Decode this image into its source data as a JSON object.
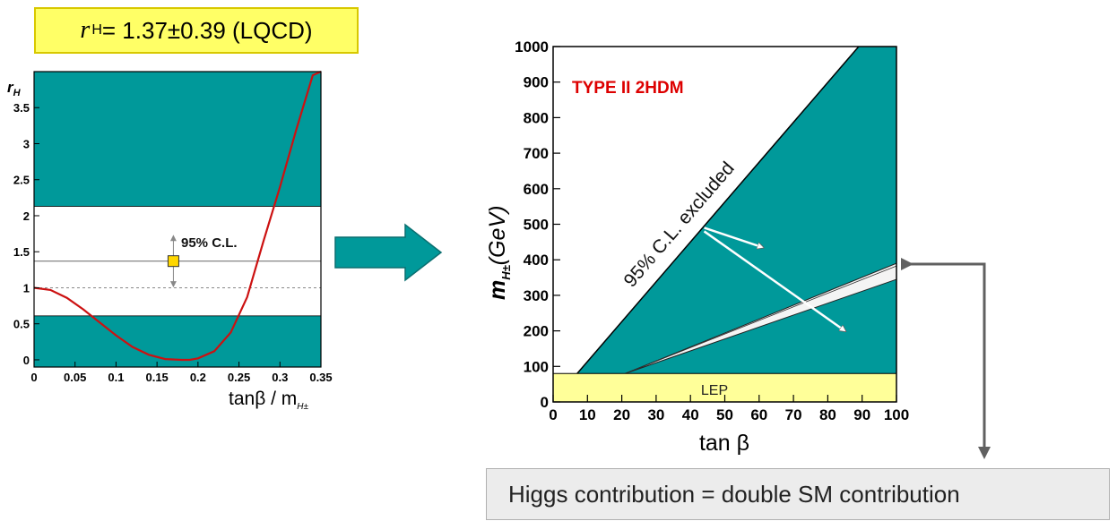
{
  "banner": {
    "symbol": "r",
    "subscript": "H",
    "text": "= 1.37±0.39 (LQCD)"
  },
  "callout": {
    "text": "Higgs contribution = double SM contribution"
  },
  "colors": {
    "teal": "#00999a",
    "lep_yellow": "#ffff99",
    "curve_red": "#cc1111",
    "marker_yellow": "#ffd700",
    "arrow_teal": "#00999a"
  },
  "chart_data": [
    {
      "type": "line",
      "title": "",
      "ylabel_symbol": "r",
      "ylabel_sub": "H",
      "xlabel_main": "tanβ / m",
      "xlabel_sub": "H±",
      "xlim": [
        0,
        0.35
      ],
      "ylim": [
        -0.1,
        4.0
      ],
      "x_ticks": [
        "0",
        "0.05",
        "0.1",
        "0.15",
        "0.2",
        "0.25",
        "0.3",
        "0.35"
      ],
      "y_ticks": [
        "0",
        "0.5",
        "1",
        "1.5",
        "2",
        "2.5",
        "3",
        "3.5"
      ],
      "excluded_bands": [
        {
          "y_from": 2.13,
          "y_to": 4.0
        },
        {
          "y_from": -0.1,
          "y_to": 0.61
        }
      ],
      "central_value": 1.37,
      "sm_reference": 1.0,
      "annotation": "95% C.L.",
      "marker": {
        "x": 0.17,
        "y": 1.37
      },
      "interval": [
        0.98,
        1.76
      ],
      "series": [
        {
          "x": [
            0,
            0.02,
            0.04,
            0.06,
            0.08,
            0.1,
            0.12,
            0.14,
            0.16,
            0.18,
            0.19,
            0.2,
            0.22,
            0.24,
            0.26,
            0.28,
            0.3,
            0.32,
            0.34,
            0.35
          ],
          "y": [
            1.0,
            0.97,
            0.86,
            0.7,
            0.52,
            0.34,
            0.18,
            0.07,
            0.01,
            0.0,
            0.0,
            0.02,
            0.12,
            0.38,
            0.87,
            1.65,
            2.4,
            3.2,
            3.95,
            4.1
          ]
        }
      ]
    },
    {
      "type": "area",
      "title": "TYPE II 2HDM",
      "ylabel_main": "m",
      "ylabel_sub": "H±",
      "ylabel_unit": "(GeV)",
      "xlabel": "tan β",
      "xlim": [
        0,
        100
      ],
      "ylim": [
        0,
        1000
      ],
      "x_ticks": [
        "0",
        "10",
        "20",
        "30",
        "40",
        "50",
        "60",
        "70",
        "80",
        "90",
        "100"
      ],
      "y_ticks": [
        "0",
        "100",
        "200",
        "300",
        "400",
        "500",
        "600",
        "700",
        "800",
        "900",
        "1000"
      ],
      "lep_limit": 80,
      "lep_label": "LEP",
      "excluded_label": "95% C.L. excluded",
      "excluded_boundary": {
        "x": [
          7,
          89
        ],
        "y": [
          80,
          1000
        ]
      },
      "allowed_wedge": {
        "tip": {
          "x": 21,
          "y": 80
        },
        "upper_end": {
          "x": 100,
          "y": 390
        },
        "lower_end": {
          "x": 100,
          "y": 345
        }
      },
      "arrows": [
        {
          "from": [
            44,
            490
          ],
          "to": [
            61,
            435
          ]
        },
        {
          "from": [
            44,
            480
          ],
          "to": [
            85,
            200
          ]
        }
      ]
    }
  ]
}
